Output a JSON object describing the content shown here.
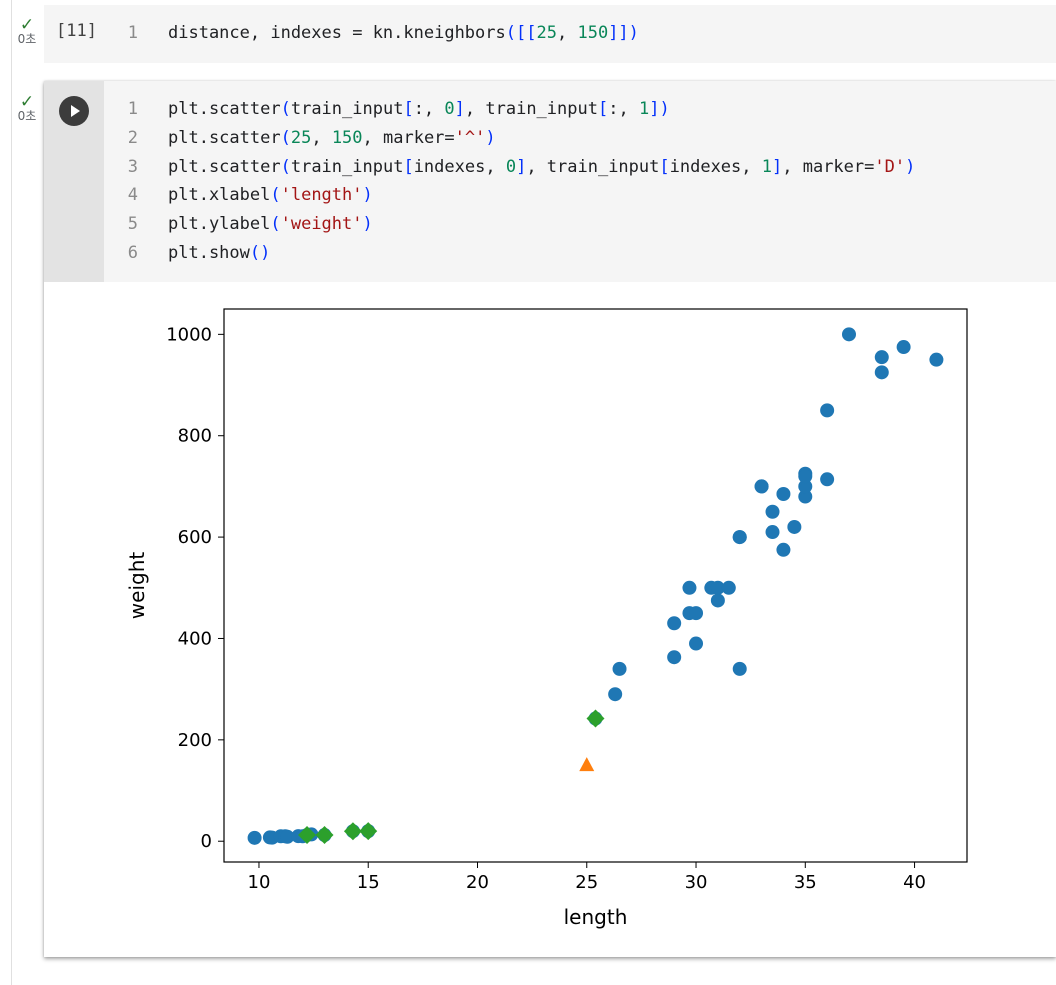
{
  "cell1": {
    "status": {
      "check": "✓",
      "time": "0초"
    },
    "exec_count": "[11]",
    "lines": [
      {
        "no": "1",
        "tokens": [
          {
            "t": "distance, indexes = kn.kneighbors",
            "c": ""
          },
          {
            "t": "(",
            "c": "paren"
          },
          {
            "t": "[[",
            "c": "paren"
          },
          {
            "t": "25",
            "c": "num"
          },
          {
            "t": ", ",
            "c": ""
          },
          {
            "t": "150",
            "c": "num"
          },
          {
            "t": "]]",
            "c": "paren"
          },
          {
            "t": ")",
            "c": "paren"
          }
        ]
      }
    ]
  },
  "cell2": {
    "status": {
      "check": "✓",
      "time": "0초"
    },
    "run_icon": "play-icon",
    "lines": [
      {
        "no": "1",
        "tokens": [
          {
            "t": "plt.scatter",
            "c": ""
          },
          {
            "t": "(",
            "c": "paren"
          },
          {
            "t": "train_input",
            "c": ""
          },
          {
            "t": "[",
            "c": "paren"
          },
          {
            "t": ":, ",
            "c": ""
          },
          {
            "t": "0",
            "c": "num"
          },
          {
            "t": "]",
            "c": "paren"
          },
          {
            "t": ", train_input",
            "c": ""
          },
          {
            "t": "[",
            "c": "paren"
          },
          {
            "t": ":, ",
            "c": ""
          },
          {
            "t": "1",
            "c": "num"
          },
          {
            "t": "]",
            "c": "paren"
          },
          {
            "t": ")",
            "c": "paren"
          }
        ]
      },
      {
        "no": "2",
        "tokens": [
          {
            "t": "plt.scatter",
            "c": ""
          },
          {
            "t": "(",
            "c": "paren"
          },
          {
            "t": "25",
            "c": "num"
          },
          {
            "t": ", ",
            "c": ""
          },
          {
            "t": "150",
            "c": "num"
          },
          {
            "t": ", marker=",
            "c": ""
          },
          {
            "t": "'^'",
            "c": "str"
          },
          {
            "t": ")",
            "c": "paren"
          }
        ]
      },
      {
        "no": "3",
        "tokens": [
          {
            "t": "plt.scatter",
            "c": ""
          },
          {
            "t": "(",
            "c": "paren"
          },
          {
            "t": "train_input",
            "c": ""
          },
          {
            "t": "[",
            "c": "paren"
          },
          {
            "t": "indexes, ",
            "c": ""
          },
          {
            "t": "0",
            "c": "num"
          },
          {
            "t": "]",
            "c": "paren"
          },
          {
            "t": ", train_input",
            "c": ""
          },
          {
            "t": "[",
            "c": "paren"
          },
          {
            "t": "indexes, ",
            "c": ""
          },
          {
            "t": "1",
            "c": "num"
          },
          {
            "t": "]",
            "c": "paren"
          },
          {
            "t": ", marker=",
            "c": ""
          },
          {
            "t": "'D'",
            "c": "str"
          },
          {
            "t": ")",
            "c": "paren"
          }
        ]
      },
      {
        "no": "4",
        "tokens": [
          {
            "t": "plt.xlabel",
            "c": ""
          },
          {
            "t": "(",
            "c": "paren"
          },
          {
            "t": "'length'",
            "c": "str"
          },
          {
            "t": ")",
            "c": "paren"
          }
        ]
      },
      {
        "no": "5",
        "tokens": [
          {
            "t": "plt.ylabel",
            "c": ""
          },
          {
            "t": "(",
            "c": "paren"
          },
          {
            "t": "'weight'",
            "c": "str"
          },
          {
            "t": ")",
            "c": "paren"
          }
        ]
      },
      {
        "no": "6",
        "tokens": [
          {
            "t": "plt.show",
            "c": ""
          },
          {
            "t": "()",
            "c": "paren"
          }
        ]
      }
    ]
  },
  "chart_data": {
    "type": "scatter",
    "xlabel": "length",
    "ylabel": "weight",
    "xlim": [
      8.4,
      42.4
    ],
    "ylim": [
      -41,
      1050
    ],
    "xticks": [
      10,
      15,
      20,
      25,
      30,
      35,
      40
    ],
    "yticks": [
      0,
      200,
      400,
      600,
      800,
      1000
    ],
    "grid": false,
    "colors": {
      "train": "#1f77b4",
      "query": "#ff7f0e",
      "neighbors": "#2ca02c"
    },
    "series": [
      {
        "marker": "circle",
        "color": "#1f77b4",
        "points": [
          [
            9.8,
            6.7
          ],
          [
            10.5,
            7.5
          ],
          [
            10.6,
            7.0
          ],
          [
            11.0,
            9.7
          ],
          [
            11.2,
            9.8
          ],
          [
            11.3,
            8.7
          ],
          [
            11.8,
            10.0
          ],
          [
            12.0,
            9.8
          ],
          [
            12.2,
            12.2
          ],
          [
            12.4,
            13.4
          ],
          [
            13.0,
            12.2
          ],
          [
            14.3,
            19.7
          ],
          [
            15.0,
            19.9
          ],
          [
            25.4,
            242.0
          ],
          [
            26.3,
            290.0
          ],
          [
            26.5,
            340.0
          ],
          [
            29.0,
            363.0
          ],
          [
            29.0,
            430.0
          ],
          [
            29.7,
            450.0
          ],
          [
            29.7,
            500.0
          ],
          [
            30.0,
            390.0
          ],
          [
            30.0,
            450.0
          ],
          [
            30.7,
            500.0
          ],
          [
            31.0,
            475.0
          ],
          [
            31.0,
            500.0
          ],
          [
            31.5,
            500.0
          ],
          [
            32.0,
            340.0
          ],
          [
            32.0,
            600.0
          ],
          [
            32.0,
            600.0
          ],
          [
            33.0,
            700.0
          ],
          [
            33.0,
            700.0
          ],
          [
            33.5,
            610.0
          ],
          [
            33.5,
            650.0
          ],
          [
            34.0,
            575.0
          ],
          [
            34.0,
            685.0
          ],
          [
            34.5,
            620.0
          ],
          [
            35.0,
            680.0
          ],
          [
            35.0,
            700.0
          ],
          [
            35.0,
            725.0
          ],
          [
            35.0,
            720.0
          ],
          [
            36.0,
            714.0
          ],
          [
            36.0,
            850.0
          ],
          [
            37.0,
            1000.0
          ],
          [
            38.5,
            955.0
          ],
          [
            38.5,
            925.0
          ],
          [
            39.5,
            975.0
          ],
          [
            41.0,
            950.0
          ]
        ]
      },
      {
        "marker": "triangle",
        "color": "#ff7f0e",
        "points": [
          [
            25,
            150
          ]
        ]
      },
      {
        "marker": "diamond",
        "color": "#2ca02c",
        "points": [
          [
            25.4,
            242.0
          ],
          [
            15.0,
            19.9
          ],
          [
            14.3,
            19.7
          ],
          [
            13.0,
            12.2
          ],
          [
            12.2,
            12.2
          ]
        ]
      }
    ]
  }
}
